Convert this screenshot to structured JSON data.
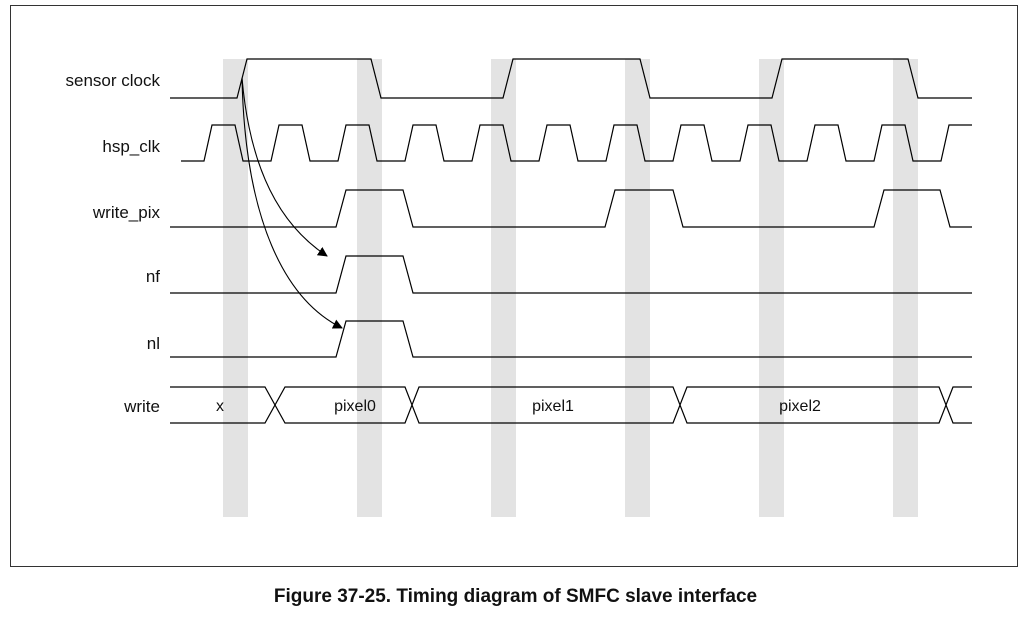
{
  "signals": [
    {
      "id": "sensor_clock",
      "label": "sensor clock"
    },
    {
      "id": "hsp_clk",
      "label": "hsp_clk"
    },
    {
      "id": "write_pix",
      "label": "write_pix"
    },
    {
      "id": "nf",
      "label": "nf"
    },
    {
      "id": "nl",
      "label": "nl"
    },
    {
      "id": "write",
      "label": "write"
    }
  ],
  "bus_values": [
    "x",
    "pixel0",
    "pixel1",
    "pixel2"
  ],
  "caption": "Figure 37-25. Timing diagram of SMFC slave interface",
  "colors": {
    "line": "#000000",
    "highlight_band": "#e3e3e3",
    "frame": "#333333"
  }
}
